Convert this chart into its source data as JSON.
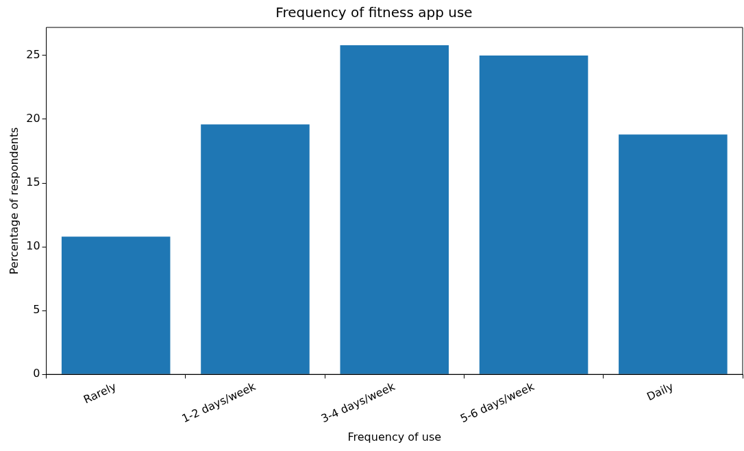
{
  "chart_data": {
    "type": "bar",
    "title": "Frequency of fitness app use",
    "xlabel": "Frequency of use",
    "ylabel": "Percentage of respondents",
    "categories": [
      "Rarely",
      "1-2 days/week",
      "3-4 days/week",
      "5-6 days/week",
      "Daily"
    ],
    "values": [
      10.8,
      19.6,
      25.8,
      25.0,
      18.8
    ],
    "color": "#1f77b4",
    "ylim": [
      0,
      27.2
    ],
    "yticks": [
      0,
      5,
      10,
      15,
      20,
      25
    ],
    "grid": false,
    "legend": false
  }
}
